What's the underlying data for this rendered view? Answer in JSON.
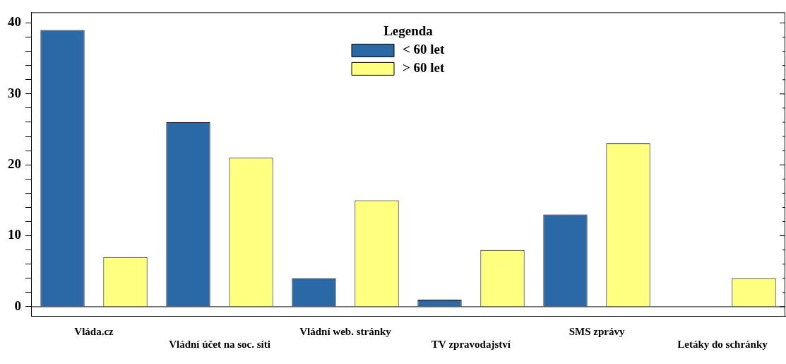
{
  "chart_data": {
    "type": "bar",
    "categories": [
      "Vláda.cz",
      "Vládní účet na soc. síti",
      "Vládní web. stránky",
      "TV zpravodajství",
      "SMS zprávy",
      "Letáky do schránky"
    ],
    "series": [
      {
        "name": "< 60 let",
        "color": "#2a69a5",
        "values": [
          39,
          26,
          4,
          1,
          13,
          0
        ]
      },
      {
        "name": "> 60 let",
        "color": "#ffff80",
        "values": [
          7,
          21,
          15,
          8,
          23,
          4
        ]
      }
    ],
    "legend_title": "Legenda",
    "legend": "top",
    "ylim": [
      -1.3,
      41.5
    ],
    "yticks": [
      0,
      {
        "value": 2,
        "label": null
      },
      {
        "value": 4,
        "label": null
      },
      {
        "value": 6,
        "label": null
      },
      {
        "value": 8,
        "label": null
      },
      10,
      {
        "value": 12,
        "label": null
      },
      {
        "value": 14,
        "label": null
      },
      {
        "value": 16,
        "label": null
      },
      {
        "value": 18,
        "label": null
      },
      20,
      {
        "value": 22,
        "label": null
      },
      {
        "value": 24,
        "label": null
      },
      {
        "value": 26,
        "label": null
      },
      {
        "value": 28,
        "label": null
      },
      30,
      {
        "value": 32,
        "label": null
      },
      {
        "value": 34,
        "label": null
      },
      {
        "value": 36,
        "label": null
      },
      {
        "value": 38,
        "label": null
      },
      40
    ],
    "grid": false,
    "ref_lines": [
      {
        "axis": "y",
        "value": 0
      }
    ]
  }
}
